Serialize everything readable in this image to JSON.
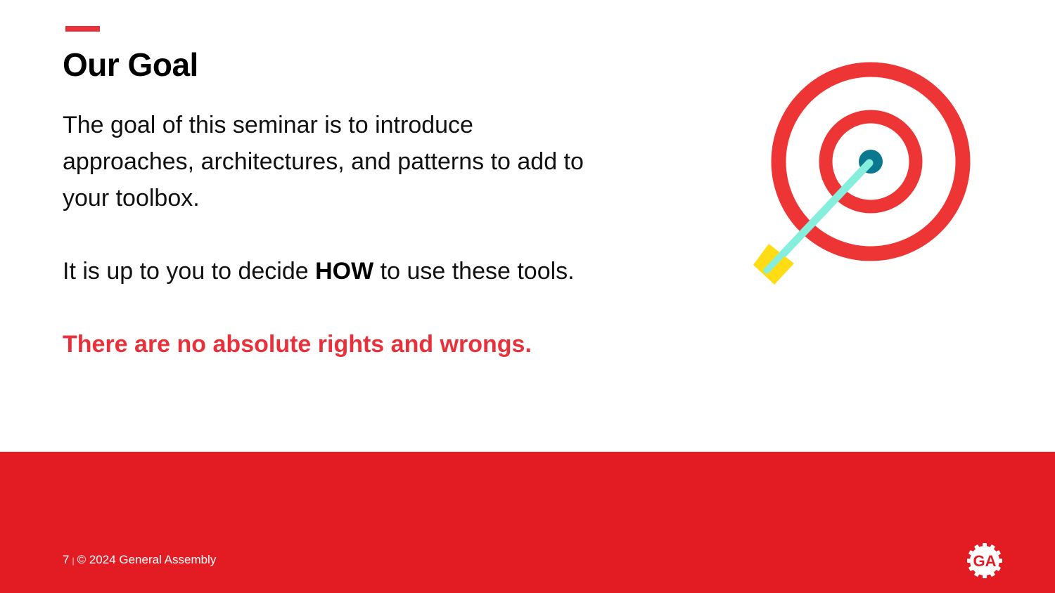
{
  "slide": {
    "title": "Our Goal",
    "intro": "The goal of this seminar is to introduce approaches, architectures, and patterns to add to your toolbox.",
    "decision_prefix": "It is up to you to decide ",
    "decision_strong": "HOW",
    "decision_suffix": " to use these tools.",
    "emphasis": "There are no absolute rights and wrongs."
  },
  "footer": {
    "page_number": "7",
    "separator": "|",
    "copyright": "© 2024 General Assembly",
    "logo_text": "GA"
  },
  "illustration": {
    "icon": "target-arrow-icon"
  },
  "colors": {
    "accent": "#e8313a",
    "footer_background": "#e31c24",
    "bullseye": "#0b7890",
    "arrow_shaft": "#86eedd",
    "arrow_fletching": "#ffdc14"
  }
}
